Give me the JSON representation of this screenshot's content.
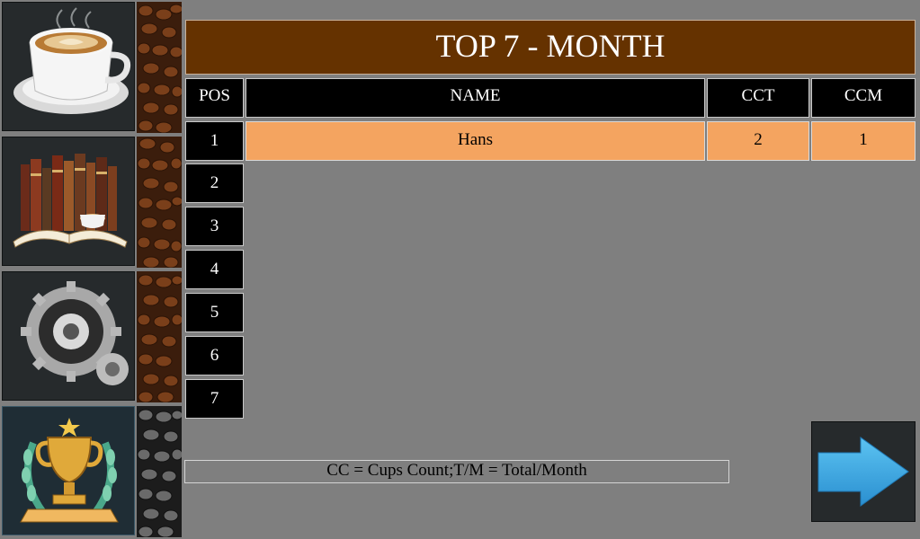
{
  "nav": {
    "items": [
      {
        "icon": "coffee-cup-icon"
      },
      {
        "icon": "books-icon"
      },
      {
        "icon": "gears-icon"
      },
      {
        "icon": "trophy-icon",
        "active": true
      }
    ]
  },
  "board": {
    "title": "TOP 7 - MONTH",
    "columns": {
      "pos": "POS",
      "name": "NAME",
      "cct": "CCT",
      "ccm": "CCM"
    },
    "positions": [
      "1",
      "2",
      "3",
      "4",
      "5",
      "6",
      "7"
    ],
    "rows": [
      {
        "name": "Hans",
        "cct": "2",
        "ccm": "1"
      }
    ],
    "legend": "CC = Cups Count;T/M = Total/Month"
  },
  "next_button": {
    "icon": "arrow-right-icon"
  },
  "colors": {
    "background": "#7f7f7f",
    "title_bar": "#653200",
    "row_highlight": "#f4a460",
    "header_cell": "#000000",
    "arrow": "#3aa7e2"
  }
}
